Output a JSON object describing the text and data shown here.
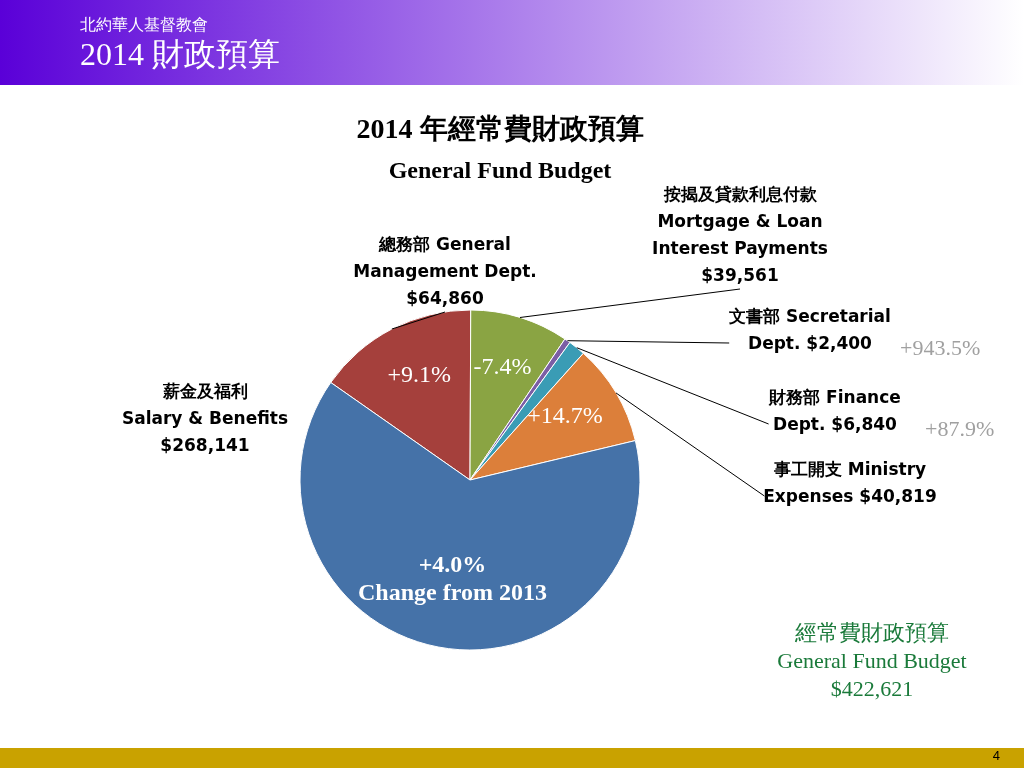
{
  "chart_data": {
    "type": "pie",
    "title": "2014 年經常費財政預算",
    "subtitle": "General Fund Budget",
    "categories": [
      "總務部  General\nManagement Dept.",
      "按揭及貸款利息付款\nMortgage & Loan\nInterest Payments",
      "文書部  Secretarial\nDept.",
      "財務部  Finance\nDept.",
      "事工開支 Ministry\nExpenses",
      "薪金及福利\nSalary & Benefits"
    ],
    "values": [
      64860,
      39561,
      2400,
      6840,
      40819,
      268141
    ],
    "value_labels": [
      "$64,860",
      "$39,561",
      "$2,400",
      "$6,840",
      "$40,819",
      "$268,141"
    ],
    "colors": [
      "#a5403c",
      "#8aa443",
      "#7b5ea5",
      "#3a9cb5",
      "#dc7f3a",
      "#4572a8"
    ],
    "annotations": [
      "北約華人基督教會",
      "2014 財政預算",
      "經常費財政預算\nGeneral Fund Budget\n$422,621",
      "4",
      {
        "text": "+9.1%",
        "x": "總務部  General\nManagement Dept."
      },
      {
        "text": "-7.4%",
        "x": "按揭及貸款利息付款\nMortgage & Loan\nInterest Payments"
      },
      {
        "text": "+943.5%",
        "x": "文書部  Secretarial\nDept."
      },
      {
        "text": "+87.9%",
        "x": "財務部  Finance\nDept."
      },
      {
        "text": "+14.7%",
        "x": "事工開支 Ministry\nExpenses"
      },
      {
        "text": "+4.0%\nChange from 2013",
        "x": "薪金及福利\nSalary & Benefits"
      }
    ]
  }
}
